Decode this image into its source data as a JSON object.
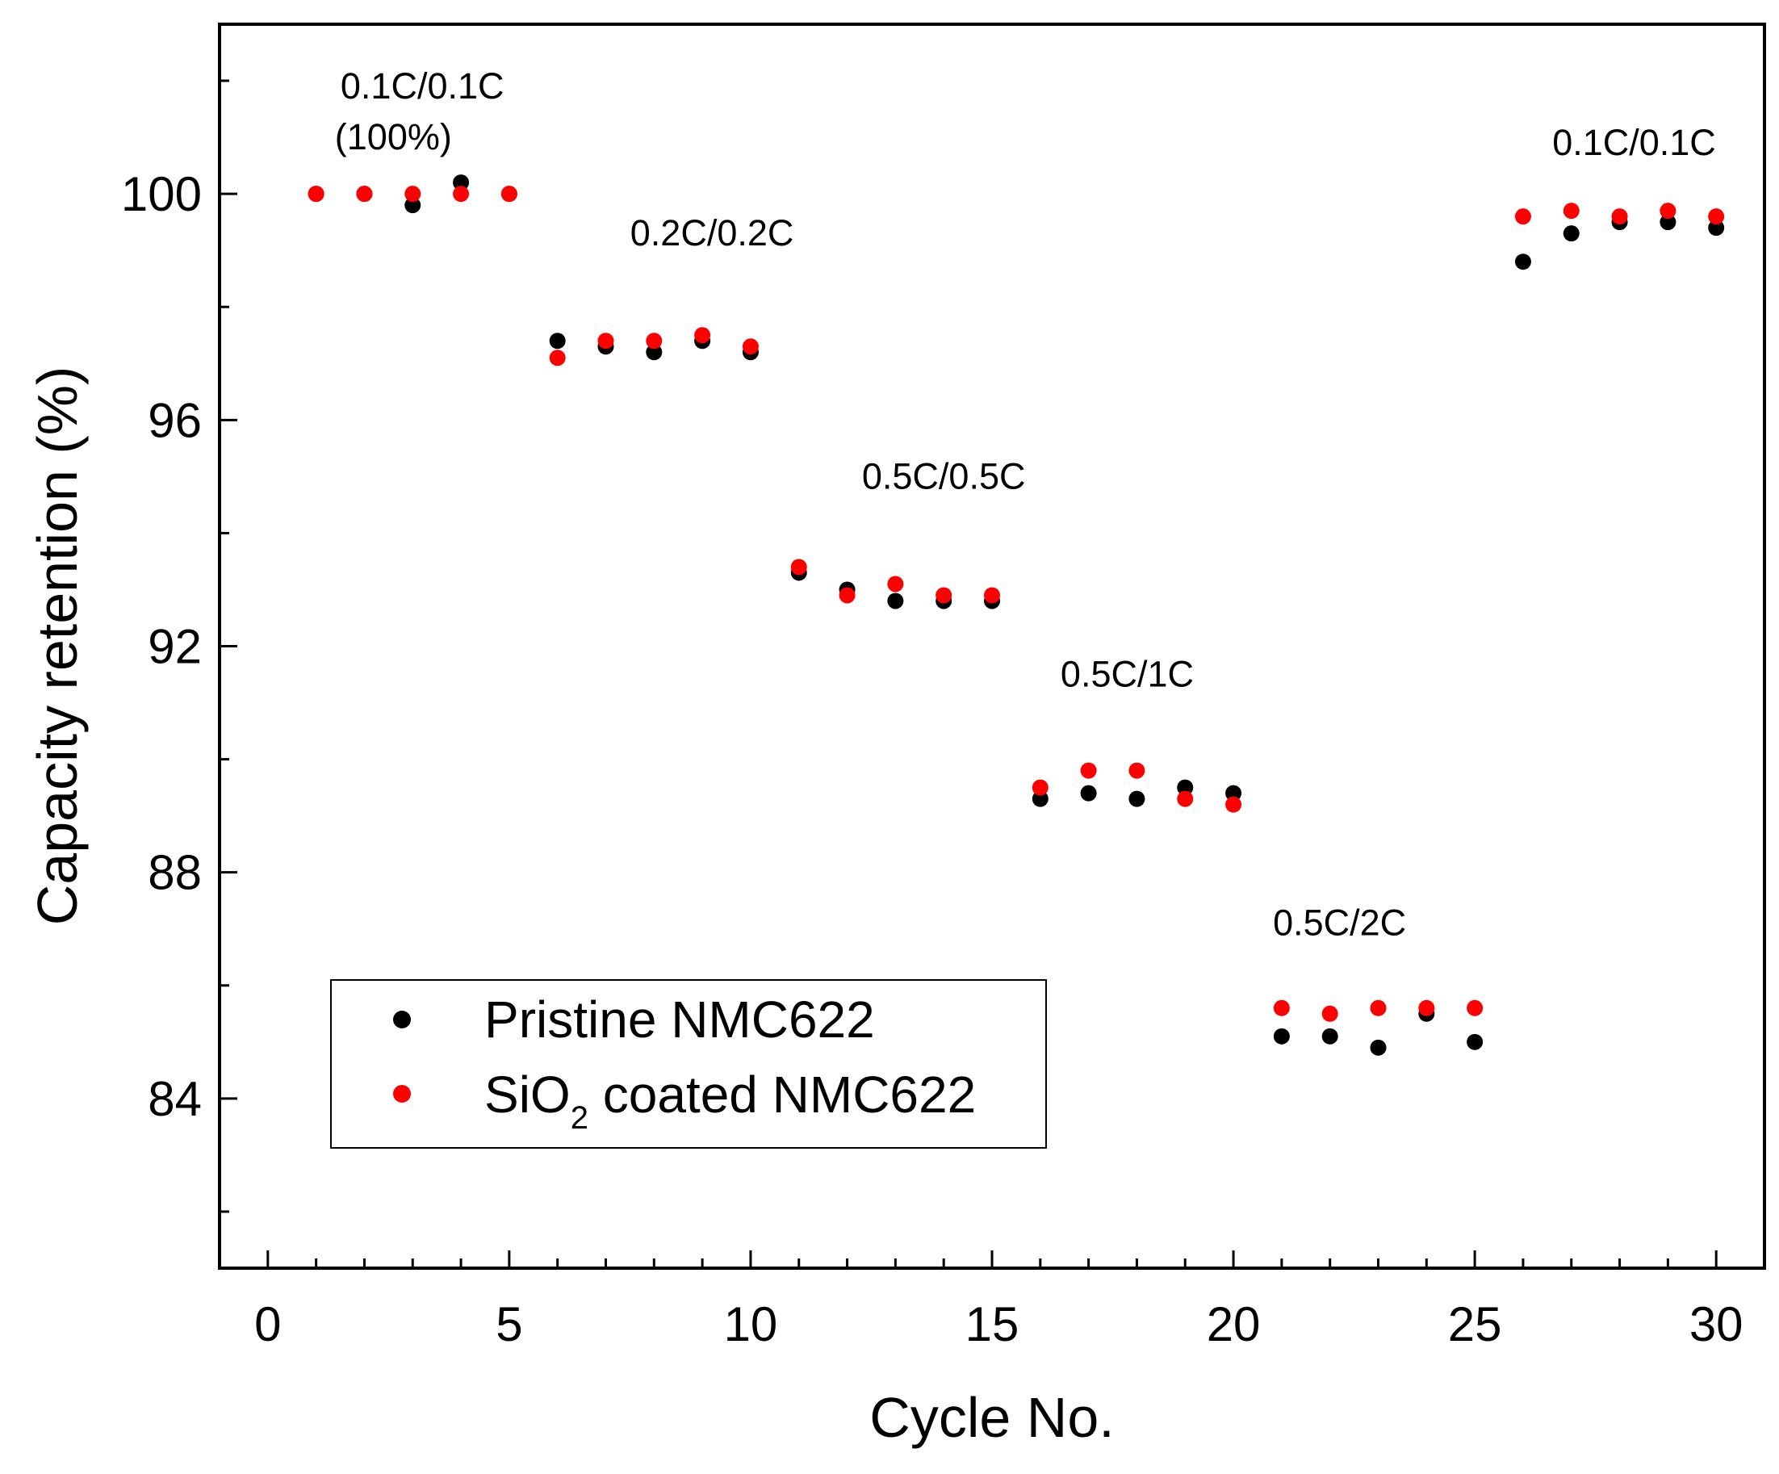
{
  "chart_data": {
    "type": "scatter",
    "title": "",
    "xlabel": "Cycle No.",
    "ylabel": "Capacity retention (%)",
    "xlim": [
      -1,
      31
    ],
    "ylim": [
      81,
      103
    ],
    "x_ticks_major": [
      0,
      5,
      10,
      15,
      20,
      25,
      30
    ],
    "x_tick_labels": [
      "0",
      "5",
      "10",
      "15",
      "20",
      "25",
      "30"
    ],
    "y_ticks_major": [
      84,
      88,
      92,
      96,
      100
    ],
    "y_tick_labels": [
      "84",
      "88",
      "92",
      "96",
      "100"
    ],
    "grid": false,
    "legend_position": "bottom-left",
    "x": [
      1,
      2,
      3,
      4,
      5,
      6,
      7,
      8,
      9,
      10,
      11,
      12,
      13,
      14,
      15,
      16,
      17,
      18,
      19,
      20,
      21,
      22,
      23,
      24,
      25,
      26,
      27,
      28,
      29,
      30
    ],
    "series": [
      {
        "name": "Pristine NMC622",
        "color": "#000000",
        "values": [
          100.0,
          100.0,
          99.8,
          100.2,
          100.0,
          97.4,
          97.3,
          97.2,
          97.4,
          97.2,
          93.3,
          93.0,
          92.8,
          92.8,
          92.8,
          89.3,
          89.4,
          89.3,
          89.5,
          89.4,
          85.1,
          85.1,
          84.9,
          85.5,
          85.0,
          98.8,
          99.3,
          99.5,
          99.5,
          99.4
        ]
      },
      {
        "name": "SiO2 coated NMC622",
        "color": "#ff0000",
        "values": [
          100.0,
          100.0,
          100.0,
          100.0,
          100.0,
          97.1,
          97.4,
          97.4,
          97.5,
          97.3,
          93.4,
          92.9,
          93.1,
          92.9,
          92.9,
          89.5,
          89.8,
          89.8,
          89.3,
          89.2,
          85.6,
          85.5,
          85.6,
          85.6,
          85.6,
          99.6,
          99.7,
          99.6,
          99.7,
          99.6
        ]
      }
    ],
    "annotations": [
      {
        "text": "0.1C/0.1C",
        "x": 3.2,
        "y": 101.9
      },
      {
        "text": "(100%)",
        "x": 2.6,
        "y": 101.0
      },
      {
        "text": "0.2C/0.2C",
        "x": 9.2,
        "y": 99.3
      },
      {
        "text": "0.5C/0.5C",
        "x": 14.0,
        "y": 95.0
      },
      {
        "text": "0.5C/1C",
        "x": 17.8,
        "y": 91.5
      },
      {
        "text": "0.5C/2C",
        "x": 22.2,
        "y": 87.1
      },
      {
        "text": "0.1C/0.1C",
        "x": 28.3,
        "y": 100.9
      }
    ],
    "legend": {
      "items": [
        {
          "label_prefix": "Pristine NMC622",
          "label_sub": "",
          "label_suffix": ""
        },
        {
          "label_prefix": "SiO",
          "label_sub": "2",
          "label_suffix": " coated NMC622"
        }
      ]
    }
  }
}
